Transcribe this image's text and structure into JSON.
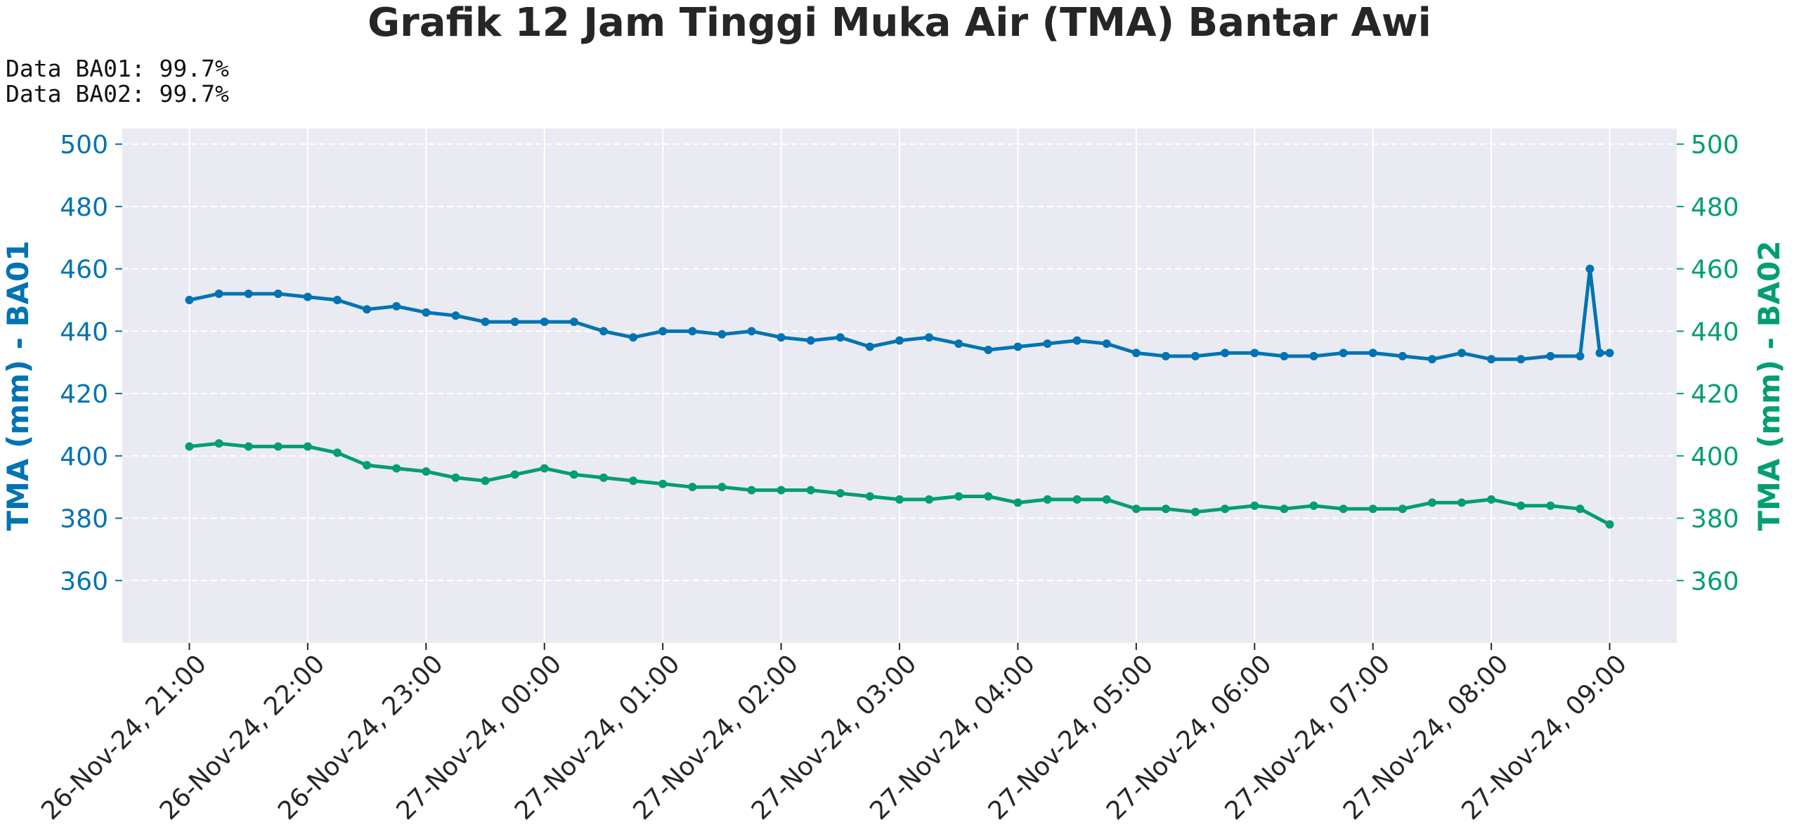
{
  "colors": {
    "plot_background": "#eaeaf2",
    "grid": "#ffffff",
    "ba01": "#0173b2",
    "ba02": "#029e73",
    "text": "#262626"
  },
  "info": {
    "ba01": "Data BA01: 99.7%",
    "ba02": "Data BA02: 99.7%"
  },
  "chart_data": {
    "type": "line",
    "title": "Grafik 12 Jam Tinggi Muka Air (TMA) Bantar Awi",
    "ylabel_left": "TMA (mm) - BA01",
    "ylabel_right": "TMA (mm) - BA02",
    "ylim": [
      340,
      505
    ],
    "yticks": [
      360,
      380,
      400,
      420,
      440,
      460,
      480,
      500
    ],
    "xlim": [
      "2024-11-26T20:26",
      "2024-11-27T09:34"
    ],
    "xticks": [
      {
        "t": "2024-11-26T21:00",
        "label": "26-Nov-24, 21:00"
      },
      {
        "t": "2024-11-26T22:00",
        "label": "26-Nov-24, 22:00"
      },
      {
        "t": "2024-11-26T23:00",
        "label": "26-Nov-24, 23:00"
      },
      {
        "t": "2024-11-27T00:00",
        "label": "27-Nov-24, 00:00"
      },
      {
        "t": "2024-11-27T01:00",
        "label": "27-Nov-24, 01:00"
      },
      {
        "t": "2024-11-27T02:00",
        "label": "27-Nov-24, 02:00"
      },
      {
        "t": "2024-11-27T03:00",
        "label": "27-Nov-24, 03:00"
      },
      {
        "t": "2024-11-27T04:00",
        "label": "27-Nov-24, 04:00"
      },
      {
        "t": "2024-11-27T05:00",
        "label": "27-Nov-24, 05:00"
      },
      {
        "t": "2024-11-27T06:00",
        "label": "27-Nov-24, 06:00"
      },
      {
        "t": "2024-11-27T07:00",
        "label": "27-Nov-24, 07:00"
      },
      {
        "t": "2024-11-27T08:00",
        "label": "27-Nov-24, 08:00"
      },
      {
        "t": "2024-11-27T09:00",
        "label": "27-Nov-24, 09:00"
      }
    ],
    "grid": true,
    "series": [
      {
        "name": "BA01",
        "axis": "left",
        "x": [
          "2024-11-26T21:00",
          "2024-11-26T21:15",
          "2024-11-26T21:30",
          "2024-11-26T21:45",
          "2024-11-26T22:00",
          "2024-11-26T22:15",
          "2024-11-26T22:30",
          "2024-11-26T22:45",
          "2024-11-26T23:00",
          "2024-11-26T23:15",
          "2024-11-26T23:30",
          "2024-11-26T23:45",
          "2024-11-27T00:00",
          "2024-11-27T00:15",
          "2024-11-27T00:30",
          "2024-11-27T00:45",
          "2024-11-27T01:00",
          "2024-11-27T01:15",
          "2024-11-27T01:30",
          "2024-11-27T01:45",
          "2024-11-27T02:00",
          "2024-11-27T02:15",
          "2024-11-27T02:30",
          "2024-11-27T02:45",
          "2024-11-27T03:00",
          "2024-11-27T03:15",
          "2024-11-27T03:30",
          "2024-11-27T03:45",
          "2024-11-27T04:00",
          "2024-11-27T04:15",
          "2024-11-27T04:30",
          "2024-11-27T04:45",
          "2024-11-27T05:00",
          "2024-11-27T05:15",
          "2024-11-27T05:30",
          "2024-11-27T05:45",
          "2024-11-27T06:00",
          "2024-11-27T06:15",
          "2024-11-27T06:30",
          "2024-11-27T06:45",
          "2024-11-27T07:00",
          "2024-11-27T07:15",
          "2024-11-27T07:30",
          "2024-11-27T07:45",
          "2024-11-27T08:00",
          "2024-11-27T08:15",
          "2024-11-27T08:30",
          "2024-11-27T08:45",
          "2024-11-27T08:50",
          "2024-11-27T08:55",
          "2024-11-27T09:00"
        ],
        "values": [
          450,
          452,
          452,
          452,
          451,
          450,
          447,
          448,
          446,
          445,
          443,
          443,
          443,
          443,
          440,
          438,
          440,
          440,
          439,
          440,
          438,
          437,
          438,
          435,
          437,
          438,
          436,
          434,
          435,
          436,
          437,
          436,
          433,
          432,
          432,
          433,
          433,
          432,
          432,
          433,
          433,
          432,
          431,
          433,
          431,
          431,
          432,
          432,
          460,
          433,
          433
        ]
      },
      {
        "name": "BA02",
        "axis": "right",
        "x": [
          "2024-11-26T21:00",
          "2024-11-26T21:15",
          "2024-11-26T21:30",
          "2024-11-26T21:45",
          "2024-11-26T22:00",
          "2024-11-26T22:15",
          "2024-11-26T22:30",
          "2024-11-26T22:45",
          "2024-11-26T23:00",
          "2024-11-26T23:15",
          "2024-11-26T23:30",
          "2024-11-26T23:45",
          "2024-11-27T00:00",
          "2024-11-27T00:15",
          "2024-11-27T00:30",
          "2024-11-27T00:45",
          "2024-11-27T01:00",
          "2024-11-27T01:15",
          "2024-11-27T01:30",
          "2024-11-27T01:45",
          "2024-11-27T02:00",
          "2024-11-27T02:15",
          "2024-11-27T02:30",
          "2024-11-27T02:45",
          "2024-11-27T03:00",
          "2024-11-27T03:15",
          "2024-11-27T03:30",
          "2024-11-27T03:45",
          "2024-11-27T04:00",
          "2024-11-27T04:15",
          "2024-11-27T04:30",
          "2024-11-27T04:45",
          "2024-11-27T05:00",
          "2024-11-27T05:15",
          "2024-11-27T05:30",
          "2024-11-27T05:45",
          "2024-11-27T06:00",
          "2024-11-27T06:15",
          "2024-11-27T06:30",
          "2024-11-27T06:45",
          "2024-11-27T07:00",
          "2024-11-27T07:15",
          "2024-11-27T07:30",
          "2024-11-27T07:45",
          "2024-11-27T08:00",
          "2024-11-27T08:15",
          "2024-11-27T08:30",
          "2024-11-27T08:45",
          "2024-11-27T09:00"
        ],
        "values": [
          403,
          404,
          403,
          403,
          403,
          401,
          397,
          396,
          395,
          393,
          392,
          394,
          396,
          394,
          393,
          392,
          391,
          390,
          390,
          389,
          389,
          389,
          388,
          387,
          386,
          386,
          387,
          387,
          385,
          386,
          386,
          386,
          383,
          383,
          382,
          383,
          384,
          383,
          384,
          383,
          383,
          383,
          385,
          385,
          386,
          384,
          384,
          383,
          378
        ]
      }
    ]
  }
}
